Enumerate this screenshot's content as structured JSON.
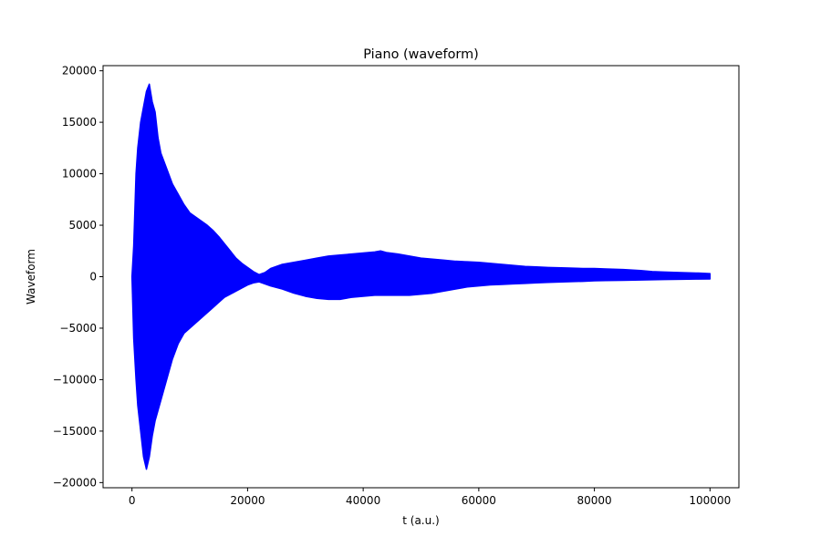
{
  "chart_data": {
    "type": "line",
    "title": "Piano (waveform)",
    "xlabel": "t (a.u.)",
    "ylabel": "Waveform",
    "xlim": [
      -5000,
      105000
    ],
    "ylim": [
      -20500,
      20500
    ],
    "xticks": [
      0,
      20000,
      40000,
      60000,
      80000,
      100000
    ],
    "xtick_labels": [
      "0",
      "20000",
      "40000",
      "60000",
      "80000",
      "100000"
    ],
    "yticks": [
      -20000,
      -15000,
      -10000,
      -5000,
      0,
      5000,
      10000,
      15000,
      20000
    ],
    "ytick_labels": [
      "−20000",
      "−15000",
      "−10000",
      "−5000",
      "0",
      "5000",
      "10000",
      "15000",
      "20000"
    ],
    "grid": false,
    "legend": "none",
    "series": [
      {
        "color": "#0000ff",
        "envelope": {
          "t": [
            0,
            300,
            700,
            1000,
            1500,
            2000,
            2500,
            3000,
            3500,
            4000,
            4500,
            5000,
            6000,
            7000,
            8000,
            9000,
            10000,
            11000,
            12000,
            13000,
            14000,
            15000,
            16000,
            17000,
            18000,
            19000,
            20000,
            21000,
            22000,
            23000,
            24000,
            26000,
            28000,
            30000,
            32000,
            34000,
            36000,
            38000,
            40000,
            42000,
            43000,
            44000,
            46000,
            48000,
            50000,
            52000,
            54000,
            56000,
            58000,
            60000,
            62000,
            64000,
            66000,
            68000,
            70000,
            72000,
            75000,
            78000,
            80000,
            82000,
            85000,
            88000,
            90000,
            92000,
            95000,
            98000,
            100000
          ],
          "upper": [
            0,
            3000,
            10000,
            12500,
            15000,
            16500,
            18000,
            18700,
            17000,
            16000,
            13500,
            12000,
            10500,
            9000,
            8000,
            7000,
            6200,
            5800,
            5400,
            5000,
            4500,
            3900,
            3200,
            2500,
            1800,
            1300,
            900,
            500,
            200,
            400,
            800,
            1200,
            1400,
            1600,
            1800,
            2000,
            2100,
            2200,
            2300,
            2400,
            2500,
            2350,
            2200,
            2000,
            1800,
            1700,
            1600,
            1500,
            1450,
            1400,
            1300,
            1200,
            1100,
            1000,
            950,
            900,
            850,
            800,
            800,
            750,
            700,
            600,
            500,
            450,
            400,
            350,
            300
          ],
          "lower": [
            0,
            -6000,
            -10000,
            -12500,
            -15000,
            -17500,
            -18700,
            -17500,
            -15500,
            -14000,
            -13000,
            -12000,
            -10000,
            -8000,
            -6500,
            -5500,
            -5000,
            -4500,
            -4000,
            -3500,
            -3000,
            -2500,
            -2000,
            -1700,
            -1400,
            -1100,
            -800,
            -600,
            -500,
            -700,
            -900,
            -1200,
            -1600,
            -1900,
            -2100,
            -2200,
            -2200,
            -2000,
            -1900,
            -1800,
            -1800,
            -1800,
            -1800,
            -1800,
            -1700,
            -1600,
            -1400,
            -1200,
            -1000,
            -900,
            -800,
            -750,
            -700,
            -650,
            -600,
            -550,
            -500,
            -450,
            -400,
            -380,
            -350,
            -320,
            -300,
            -280,
            -250,
            -230,
            -220
          ]
        }
      }
    ]
  }
}
